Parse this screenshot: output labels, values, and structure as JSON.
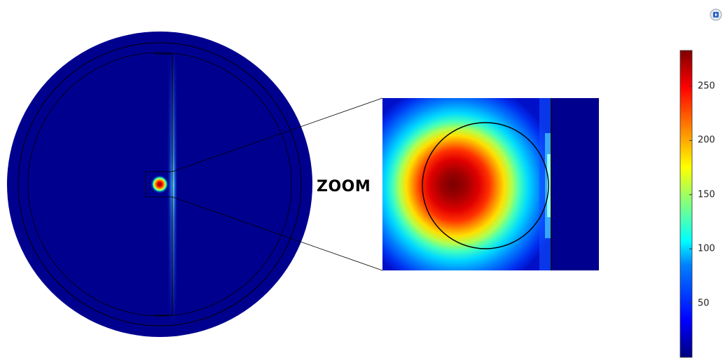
{
  "zoom_label": "ZOOM",
  "colorbar": {
    "ticks": [
      "250",
      "200",
      "150",
      "100",
      "50"
    ],
    "tick_values": [
      250,
      200,
      150,
      100,
      50
    ],
    "min": 0,
    "max": 283
  },
  "colors": {
    "background_field": "#00008f",
    "colormap": [
      "#00007f",
      "#0000ff",
      "#0080ff",
      "#00ffff",
      "#80ff80",
      "#ffff00",
      "#ff8000",
      "#ff0000",
      "#800000"
    ]
  },
  "icons": {
    "top_right": "play-icon"
  }
}
